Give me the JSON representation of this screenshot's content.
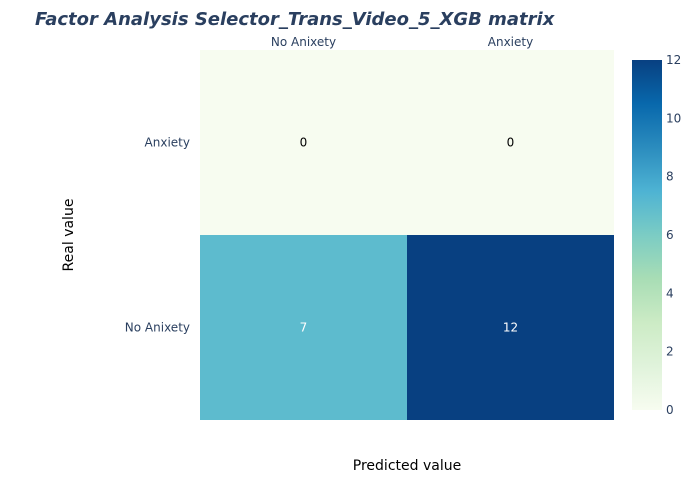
{
  "chart_data": {
    "type": "heatmap",
    "title": "Factor Analysis Selector_Trans_Video_5_XGB matrix",
    "xlabel": "Predicted value",
    "ylabel": "Real value",
    "x_categories": [
      "No Anixety",
      "Anxiety"
    ],
    "y_categories": [
      "Anxiety",
      "No Anixety"
    ],
    "z": [
      [
        0,
        0
      ],
      [
        7,
        12
      ]
    ],
    "zlim": [
      0,
      12
    ],
    "colorscale": "GnBu",
    "colorbar_ticks": [
      "0",
      "2",
      "4",
      "6",
      "8",
      "10",
      "12"
    ],
    "colors": {
      "title": "#2a3f5f",
      "tick": "#2a3f5f",
      "scale": [
        "#f7fcf0",
        "#e0f3db",
        "#ccebc5",
        "#a8ddb5",
        "#7bccc4",
        "#4eb3d3",
        "#2b8cbe",
        "#0868ac",
        "#084081"
      ]
    }
  }
}
